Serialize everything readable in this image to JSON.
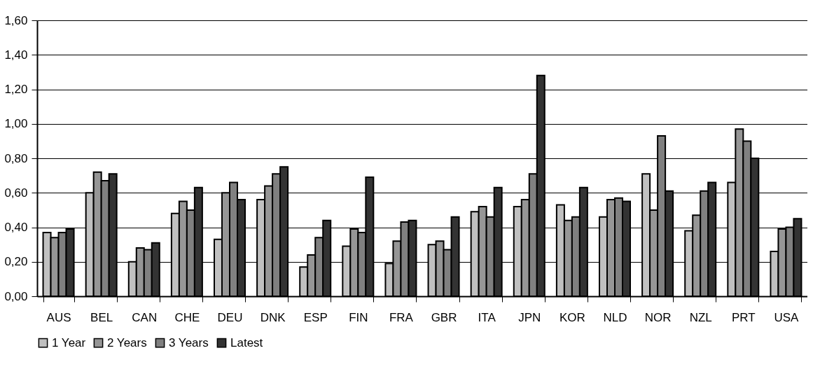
{
  "chart_data": {
    "type": "bar",
    "categories": [
      "AUS",
      "BEL",
      "CAN",
      "CHE",
      "DEU",
      "DNK",
      "ESP",
      "FIN",
      "FRA",
      "GBR",
      "ITA",
      "JPN",
      "KOR",
      "NLD",
      "NOR",
      "NZL",
      "PRT",
      "USA"
    ],
    "series": [
      {
        "name": "1 Year",
        "color": "#c0c0c0",
        "values": [
          0.37,
          0.6,
          0.2,
          0.48,
          0.33,
          0.56,
          0.17,
          0.29,
          0.19,
          0.3,
          0.49,
          0.52,
          0.53,
          0.46,
          0.71,
          0.38,
          0.66,
          0.26
        ]
      },
      {
        "name": "2 Years",
        "color": "#969696",
        "values": [
          0.34,
          0.72,
          0.28,
          0.55,
          0.6,
          0.64,
          0.24,
          0.39,
          0.32,
          0.32,
          0.52,
          0.56,
          0.44,
          0.56,
          0.5,
          0.47,
          0.97,
          0.39
        ]
      },
      {
        "name": "3 Years",
        "color": "#808080",
        "values": [
          0.37,
          0.67,
          0.27,
          0.5,
          0.66,
          0.71,
          0.34,
          0.37,
          0.43,
          0.27,
          0.46,
          0.71,
          0.46,
          0.57,
          0.93,
          0.61,
          0.9,
          0.4
        ]
      },
      {
        "name": "Latest",
        "color": "#333333",
        "values": [
          0.39,
          0.71,
          0.31,
          0.63,
          0.56,
          0.75,
          0.44,
          0.69,
          0.44,
          0.46,
          0.63,
          1.28,
          0.63,
          0.55,
          0.61,
          0.66,
          0.8,
          0.45
        ]
      }
    ],
    "ylim": [
      0,
      1.6
    ],
    "yticks": [
      {
        "value": 0,
        "label": "0,00"
      },
      {
        "value": 0.2,
        "label": "0,20"
      },
      {
        "value": 0.4,
        "label": "0,40"
      },
      {
        "value": 0.6,
        "label": "0,60"
      },
      {
        "value": 0.8,
        "label": "0,80"
      },
      {
        "value": 1.0,
        "label": "1,00"
      },
      {
        "value": 1.2,
        "label": "1,20"
      },
      {
        "value": 1.4,
        "label": "1,40"
      },
      {
        "value": 1.6,
        "label": "1,60"
      }
    ],
    "grid": "y",
    "legend": "bottom"
  }
}
